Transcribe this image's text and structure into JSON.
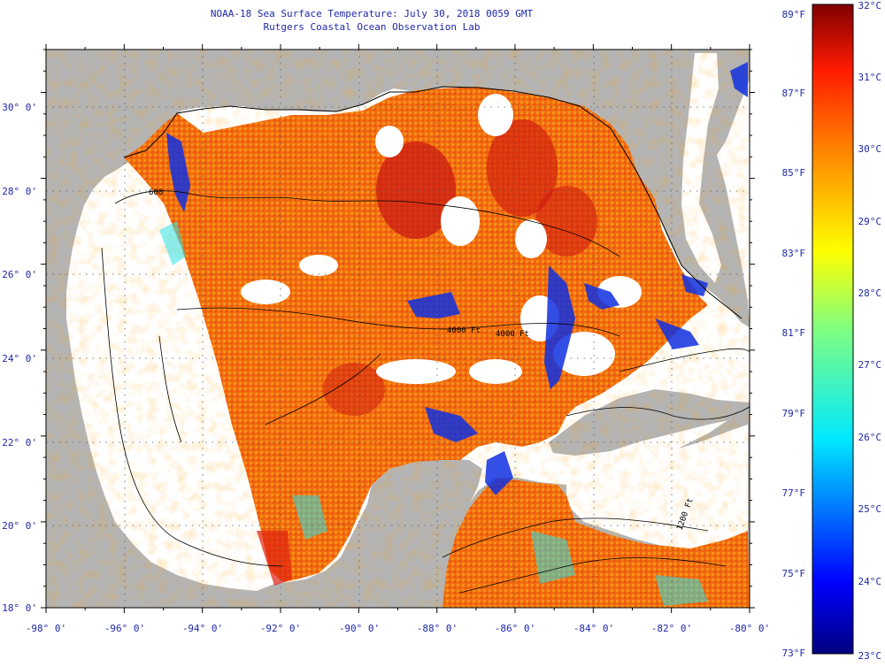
{
  "title": "NOAA-18 Sea Surface Temperature:  July 30, 2018 0059 GMT",
  "subtitle": "Rutgers Coastal Ocean Observation Lab",
  "map": {
    "lon_range": [
      -98,
      -80
    ],
    "lat_range": [
      18,
      31
    ],
    "lon_ticks": [
      "-98° 0'",
      "-96° 0'",
      "-94° 0'",
      "-92° 0'",
      "-90° 0'",
      "-88° 0'",
      "-86° 0'",
      "-84° 0'",
      "-82° 0'",
      "-80° 0'"
    ],
    "lat_ticks": [
      "18° 0'",
      "20° 0'",
      "22° 0'",
      "24° 0'",
      "26° 0'",
      "28° 0'",
      "30° 0'"
    ],
    "contour_labels": [
      "600",
      "4000 Ft",
      "4000 Ft",
      "1200 Ft"
    ],
    "land_color": "#b4b4b4",
    "nodata_color": "#ffffff"
  },
  "colorbar": {
    "fahrenheit": [
      "89°F",
      "87°F",
      "85°F",
      "83°F",
      "81°F",
      "79°F",
      "77°F",
      "75°F",
      "73°F"
    ],
    "celsius": [
      "32°C",
      "31°C",
      "30°C",
      "29°C",
      "28°C",
      "27°C",
      "26°C",
      "25°C",
      "24°C",
      "23°C"
    ],
    "range_c": [
      23,
      32
    ],
    "colors": [
      "#00007f",
      "#0000ff",
      "#0080ff",
      "#00ffff",
      "#80ff80",
      "#ffff00",
      "#ff8000",
      "#ff0000",
      "#7f0000"
    ]
  }
}
